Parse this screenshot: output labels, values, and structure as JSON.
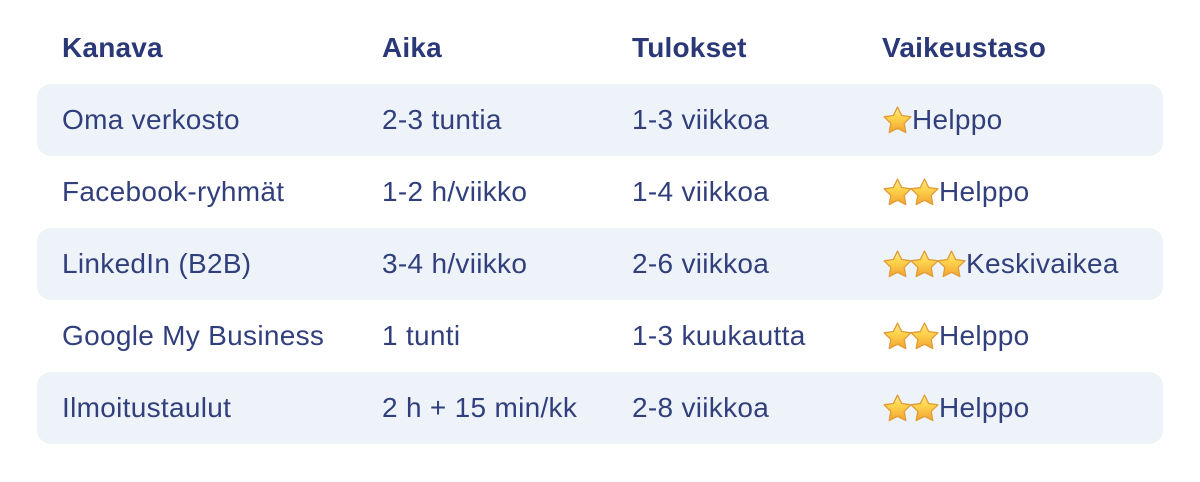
{
  "table": {
    "headers": [
      "Kanava",
      "Aika",
      "Tulokset",
      "Vaikeustaso"
    ],
    "rows": [
      {
        "channel": "Oma verkosto",
        "time": "2-3 tuntia",
        "results": "1-3 viikkoa",
        "stars": 1,
        "difficulty": "Helppo"
      },
      {
        "channel": "Facebook-ryhmät",
        "time": "1-2 h/viikko",
        "results": "1-4 viikkoa",
        "stars": 2,
        "difficulty": "Helppo"
      },
      {
        "channel": "LinkedIn (B2B)",
        "time": "3-4 h/viikko",
        "results": "2-6 viikkoa",
        "stars": 3,
        "difficulty": "Keskivaikea"
      },
      {
        "channel": "Google My Business",
        "time": "1 tunti",
        "results": "1-3 kuukautta",
        "stars": 2,
        "difficulty": "Helppo"
      },
      {
        "channel": "Ilmoitustaulut",
        "time": "2 h + 15 min/kk",
        "results": "2-8 viikkoa",
        "stars": 2,
        "difficulty": "Helppo"
      }
    ]
  },
  "icons": {
    "star": "star-icon"
  },
  "colors": {
    "header_text": "#2a3878",
    "body_text": "#313f7c",
    "stripe_background": "#edf3f8",
    "page_background": "#ffffff",
    "star_gold_light": "#ffe482",
    "star_gold_mid": "#ffd44d",
    "star_gold_dark": "#f0a432",
    "star_outline": "#e29c35"
  }
}
